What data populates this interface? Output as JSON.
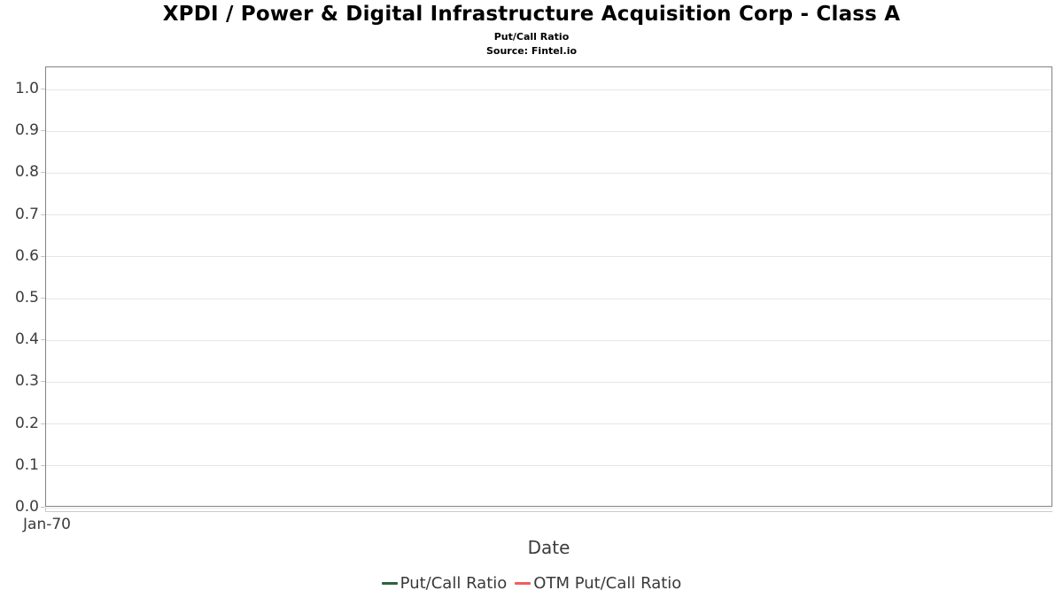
{
  "header": {
    "title": "XPDI / Power & Digital Infrastructure Acquisition Corp - Class A",
    "subtitle": "Put/Call Ratio",
    "source": "Source: Fintel.io"
  },
  "chart_data": {
    "type": "line",
    "title": "XPDI / Power & Digital Infrastructure Acquisition Corp - Class A",
    "subtitle": "Put/Call Ratio",
    "source": "Source: Fintel.io",
    "xlabel": "Date",
    "ylabel": "",
    "ylim": [
      0.0,
      1.05
    ],
    "grid": true,
    "legend_position": "bottom-center",
    "x_ticks": [
      "Jan-70"
    ],
    "y_ticks": [
      "1.0",
      "0.9",
      "0.8",
      "0.7",
      "0.6",
      "0.5",
      "0.4",
      "0.3",
      "0.2",
      "0.1",
      "0.0"
    ],
    "series": [
      {
        "name": "Put/Call Ratio",
        "color": "#2c633a",
        "x": [],
        "values": []
      },
      {
        "name": "OTM Put/Call Ratio",
        "color": "#f45b5b",
        "x": [],
        "values": []
      }
    ]
  },
  "colors": {
    "plot_border": "#828282",
    "gridline": "#e6e6e6",
    "axis_line": "#cccccc",
    "tick_label": "#3c3c3c",
    "legend_text": "#3a3a3a",
    "title_text": "#000000"
  }
}
